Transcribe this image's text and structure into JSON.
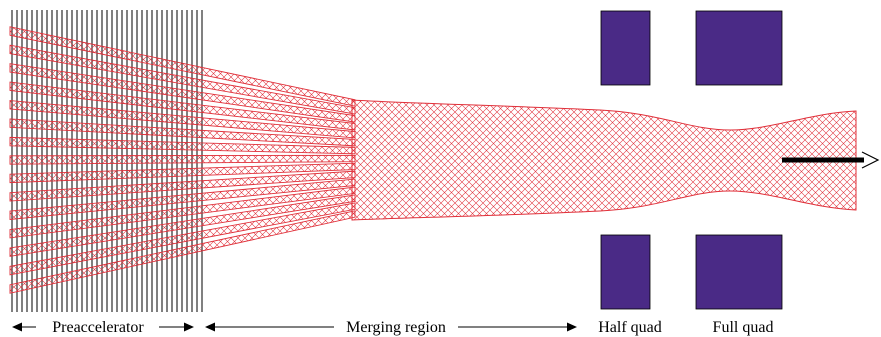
{
  "labels": {
    "preaccelerator": "Preaccelerator",
    "merging_region": "Merging region",
    "half_quad": "Half quad",
    "full_quad": "Full quad"
  },
  "beamlet_count": 15,
  "colors": {
    "beam": "#e0303a",
    "quad": "#4a2a86",
    "grid": "#000000",
    "arrow": "#000000"
  }
}
